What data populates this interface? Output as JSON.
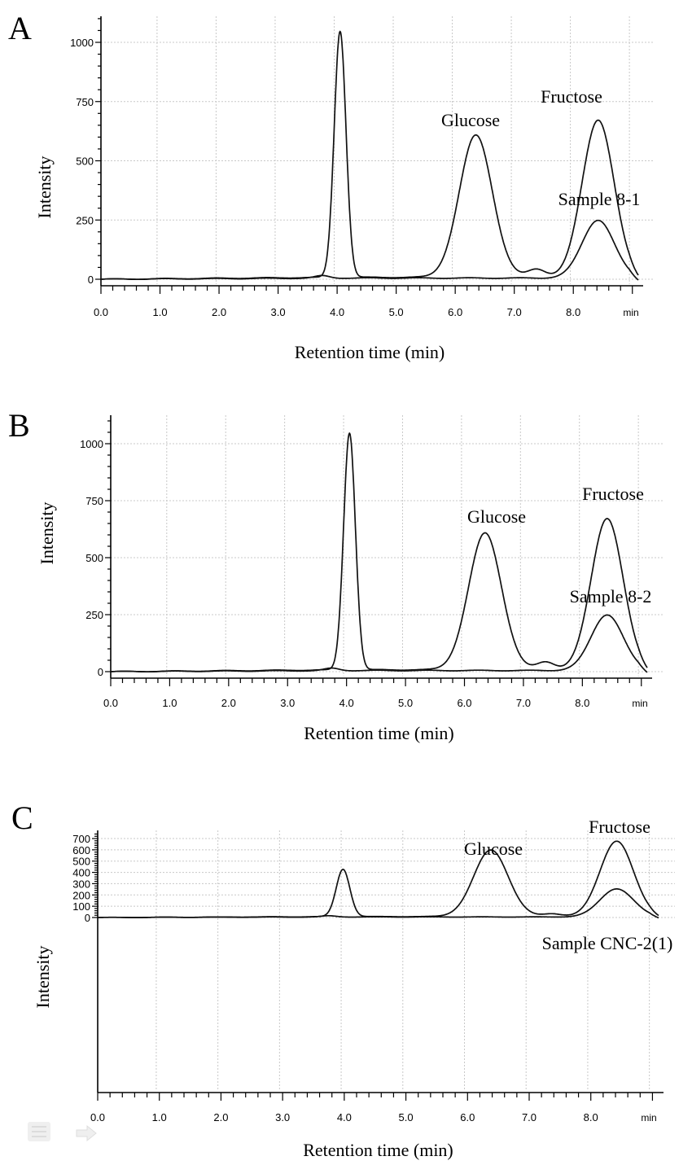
{
  "figure": {
    "colors": {
      "trace": "#111111",
      "grid": "#c8c8c8",
      "background": "#ffffff"
    },
    "toolbar": {
      "icons": [
        "document-icon",
        "arrow-right-icon"
      ]
    }
  },
  "chart_data": [
    {
      "type": "line",
      "panel_label": "A",
      "xlabel": "Retention time (min)",
      "ylabel": "Intensity",
      "x_unit_label": "min",
      "xlim": [
        0,
        9.1
      ],
      "ylim": [
        -70,
        1130
      ],
      "xticks": [
        0,
        1,
        2,
        3,
        4,
        5,
        6,
        7,
        8
      ],
      "xtick_labels": [
        "0.0",
        "1.0",
        "2.0",
        "3.0",
        "4.0",
        "5.0",
        "6.0",
        "7.0",
        "8.0"
      ],
      "yticks": [
        0,
        250,
        500,
        750,
        1000
      ],
      "ytick_labels": [
        "0",
        "250",
        "500",
        "750",
        "1000"
      ],
      "grid": true,
      "peaks_standard": [
        {
          "x": 4.05,
          "height": 1040,
          "width": 0.1
        },
        {
          "x": 6.35,
          "height": 600,
          "width": 0.28
        },
        {
          "x": 7.38,
          "height": 35,
          "width": 0.15
        },
        {
          "x": 8.42,
          "height": 665,
          "width": 0.27
        }
      ],
      "peaks_sample": [
        {
          "x": 3.75,
          "height": 10,
          "width": 0.12
        },
        {
          "x": 8.42,
          "height": 245,
          "width": 0.27
        }
      ],
      "annotations": [
        {
          "text": "Glucose",
          "x": 6.25,
          "y": 660
        },
        {
          "text": "Fructose",
          "x": 8.3,
          "y": 760
        },
        {
          "text": "Sample 8-1",
          "x": 8.6,
          "y": 325
        }
      ]
    },
    {
      "type": "line",
      "panel_label": "B",
      "xlabel": "Retention time (min)",
      "ylabel": "Intensity",
      "x_unit_label": "min",
      "xlim": [
        0,
        9.1
      ],
      "ylim": [
        -70,
        1130
      ],
      "xticks": [
        0,
        1,
        2,
        3,
        4,
        5,
        6,
        7,
        8
      ],
      "xtick_labels": [
        "0.0",
        "1.0",
        "2.0",
        "3.0",
        "4.0",
        "5.0",
        "6.0",
        "7.0",
        "8.0"
      ],
      "yticks": [
        0,
        250,
        500,
        750,
        1000
      ],
      "ytick_labels": [
        "0",
        "250",
        "500",
        "750",
        "1000"
      ],
      "grid": true,
      "peaks_standard": [
        {
          "x": 4.05,
          "height": 1040,
          "width": 0.1
        },
        {
          "x": 6.35,
          "height": 600,
          "width": 0.28
        },
        {
          "x": 7.38,
          "height": 35,
          "width": 0.15
        },
        {
          "x": 8.42,
          "height": 665,
          "width": 0.27
        }
      ],
      "peaks_sample": [
        {
          "x": 3.75,
          "height": 10,
          "width": 0.12
        },
        {
          "x": 8.42,
          "height": 245,
          "width": 0.27
        }
      ],
      "annotations": [
        {
          "text": "Glucose",
          "x": 6.3,
          "y": 660
        },
        {
          "text": "Fructose",
          "x": 8.3,
          "y": 760
        },
        {
          "text": "Sample 8-2",
          "x": 8.6,
          "y": 325
        }
      ]
    },
    {
      "type": "line",
      "panel_label": "C",
      "xlabel": "Retention time (min)",
      "ylabel": "Intensity",
      "x_unit_label": "min",
      "xlim": [
        0,
        9.1
      ],
      "ylim": [
        -55,
        720
      ],
      "xticks": [
        0,
        1,
        2,
        3,
        4,
        5,
        6,
        7,
        8
      ],
      "xtick_labels": [
        "0.0",
        "1.0",
        "2.0",
        "3.0",
        "4.0",
        "5.0",
        "6.0",
        "7.0",
        "8.0"
      ],
      "yticks": [
        0,
        100,
        200,
        300,
        400,
        500,
        600,
        700
      ],
      "ytick_labels": [
        "0",
        "100",
        "200",
        "300",
        "400",
        "500",
        "600",
        "700"
      ],
      "grid": true,
      "peaks_standard": [
        {
          "x": 3.98,
          "height": 420,
          "width": 0.11
        },
        {
          "x": 6.38,
          "height": 590,
          "width": 0.28
        },
        {
          "x": 7.38,
          "height": 25,
          "width": 0.15
        },
        {
          "x": 8.42,
          "height": 670,
          "width": 0.27
        }
      ],
      "peaks_sample": [
        {
          "x": 3.75,
          "height": 10,
          "width": 0.12
        },
        {
          "x": 8.42,
          "height": 250,
          "width": 0.27
        }
      ],
      "annotations": [
        {
          "text": "Glucose",
          "x": 6.3,
          "y": 625
        },
        {
          "text": "Fructose",
          "x": 8.3,
          "y": 700
        },
        {
          "text": "Sample CNC-2(1)",
          "x": 8.6,
          "y": 345
        }
      ]
    }
  ]
}
